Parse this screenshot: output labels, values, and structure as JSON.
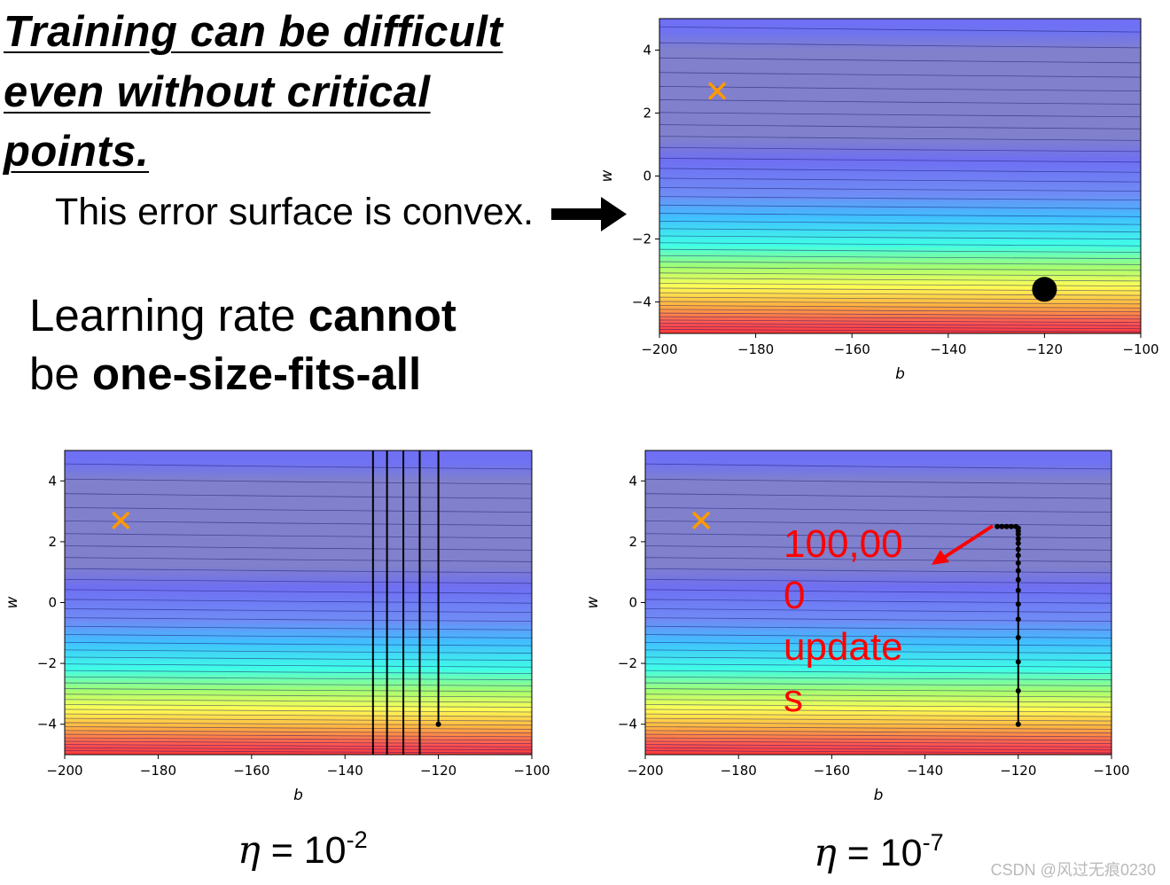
{
  "title_lines": [
    "Training can be difficult",
    "even without critical",
    "points."
  ],
  "subtitle": "This error surface is convex.",
  "learning_rate": {
    "line1_prefix": "Learning rate ",
    "line1_bold": "cannot",
    "line2_prefix": "be ",
    "line2_bold": "one-size-fits-all"
  },
  "eta_left": {
    "symbol": "η",
    "eq": " = 10",
    "exp": "-2"
  },
  "eta_right": {
    "symbol": "η",
    "eq": " = 10",
    "exp": "-7"
  },
  "updates_label": [
    "100,00",
    "0",
    "update",
    "s"
  ],
  "watermark": "CSDN @风过无痕0230",
  "colors": {
    "red": "#ff0000",
    "orange": "#ff9900",
    "black": "#000000"
  },
  "chart_data": [
    {
      "id": "top",
      "type": "contour",
      "xlabel": "b",
      "ylabel": "w",
      "xlim": [
        -200,
        -100
      ],
      "ylim": [
        -5,
        5
      ],
      "xticks": [
        -200,
        -180,
        -160,
        -140,
        -120,
        -100
      ],
      "yticks": [
        -4,
        -2,
        0,
        2,
        4
      ],
      "optimum": {
        "b": -188,
        "w": 2.7,
        "marker": "x"
      },
      "start_point": {
        "b": -120,
        "w": -3.6
      }
    },
    {
      "id": "bottom-left",
      "type": "contour",
      "xlabel": "b",
      "ylabel": "w",
      "xlim": [
        -200,
        -100
      ],
      "ylim": [
        -5,
        5
      ],
      "xticks": [
        -200,
        -180,
        -160,
        -140,
        -120,
        -100
      ],
      "yticks": [
        -4,
        -2,
        0,
        2,
        4
      ],
      "optimum": {
        "b": -188,
        "w": 2.7,
        "marker": "x"
      },
      "start_point": {
        "b": -120,
        "w": -4
      },
      "oscillation_b": [
        -134,
        -131,
        -127.5,
        -124,
        -120
      ]
    },
    {
      "id": "bottom-right",
      "type": "contour",
      "xlabel": "b",
      "ylabel": "w",
      "xlim": [
        -200,
        -100
      ],
      "ylim": [
        -5,
        5
      ],
      "xticks": [
        -200,
        -180,
        -160,
        -140,
        -120,
        -100
      ],
      "yticks": [
        -4,
        -2,
        0,
        2,
        4
      ],
      "optimum": {
        "b": -188,
        "w": 2.7,
        "marker": "x"
      },
      "path": [
        {
          "b": -120,
          "w": -4
        },
        {
          "b": -120,
          "w": -2.9
        },
        {
          "b": -120,
          "w": -1.95
        },
        {
          "b": -120,
          "w": -1.15
        },
        {
          "b": -120,
          "w": -0.55
        },
        {
          "b": -120,
          "w": -0.05
        },
        {
          "b": -120,
          "w": 0.4
        },
        {
          "b": -120,
          "w": 0.75
        },
        {
          "b": -120,
          "w": 1.05
        },
        {
          "b": -120,
          "w": 1.3
        },
        {
          "b": -120,
          "w": 1.55
        },
        {
          "b": -120,
          "w": 1.75
        },
        {
          "b": -120,
          "w": 1.95
        },
        {
          "b": -120,
          "w": 2.1
        },
        {
          "b": -120,
          "w": 2.25
        },
        {
          "b": -120,
          "w": 2.35
        },
        {
          "b": -120,
          "w": 2.45
        },
        {
          "b": -120.5,
          "w": 2.5
        },
        {
          "b": -121.5,
          "w": 2.5
        },
        {
          "b": -122.5,
          "w": 2.5
        },
        {
          "b": -123.5,
          "w": 2.5
        },
        {
          "b": -124.5,
          "w": 2.5
        }
      ]
    }
  ]
}
